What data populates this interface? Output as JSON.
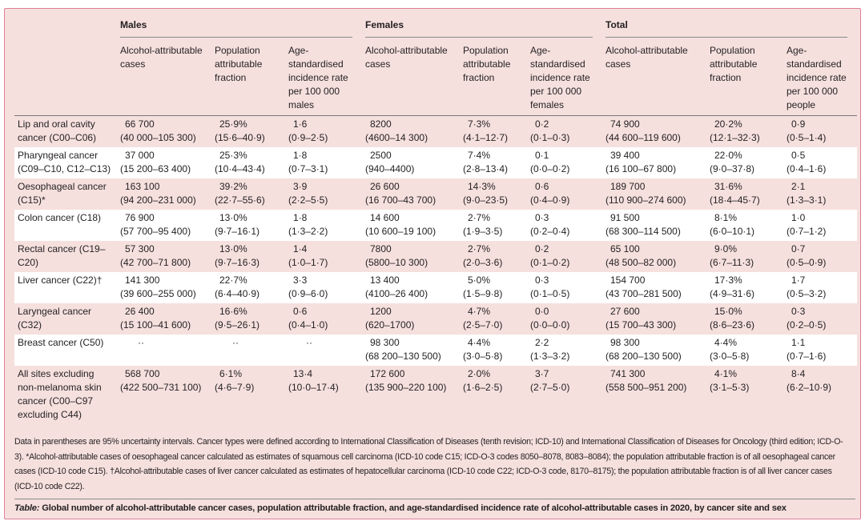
{
  "groups": [
    "Males",
    "Females",
    "Total"
  ],
  "subheaders": [
    "Alcohol-attributable cases",
    "Population attributable fraction",
    "Age-standardised incidence rate per 100 000 males",
    "Alcohol-attributable cases",
    "Population attributable fraction",
    "Age-standardised incidence rate per 100 000 females",
    "Alcohol-attributable cases",
    "Population attributable fraction",
    "Age-standardised incidence rate per 100 000 people"
  ],
  "rows": [
    {
      "label": "Lip and oral cavity cancer (C00–C06)",
      "cells": [
        [
          "66 700",
          "(40 000–105 300)"
        ],
        [
          "25·9%",
          "(15·6–40·9)"
        ],
        [
          "1·6",
          "(0·9–2·5)"
        ],
        [
          "8200",
          "(4600–14 300)"
        ],
        [
          "7·3%",
          "(4·1–12·7)"
        ],
        [
          "0·2",
          "(0·1–0·3)"
        ],
        [
          "74 900",
          "(44 600–119 600)"
        ],
        [
          "20·2%",
          "(12·1–32·3)"
        ],
        [
          "0·9",
          "(0·5–1·4)"
        ]
      ]
    },
    {
      "label": "Pharyngeal cancer (C09–C10, C12–C13)",
      "cells": [
        [
          "37 000",
          "(15 200–63 400)"
        ],
        [
          "25·3%",
          "(10·4–43·4)"
        ],
        [
          "1·8",
          "(0·7–3·1)"
        ],
        [
          "2500",
          "(940–4400)"
        ],
        [
          "7·4%",
          "(2·8–13·4)"
        ],
        [
          "0·1",
          "(0·0–0·2)"
        ],
        [
          "39 400",
          "(16 100–67 800)"
        ],
        [
          "22·0%",
          "(9·0–37·8)"
        ],
        [
          "0·5",
          "(0·4–1·6)"
        ]
      ]
    },
    {
      "label": "Oesophageal cancer (C15)*",
      "cells": [
        [
          "163 100",
          "(94 200–231 000)"
        ],
        [
          "39·2%",
          "(22·7–55·6)"
        ],
        [
          "3·9",
          "(2·2–5·5)"
        ],
        [
          "26 600",
          "(16 700–43 700)"
        ],
        [
          "14·3%",
          "(9·0–23·5)"
        ],
        [
          "0·6",
          "(0·4–0·9)"
        ],
        [
          "189 700",
          "(110 900–274 600)"
        ],
        [
          "31·6%",
          "(18·4–45·7)"
        ],
        [
          "2·1",
          "(1·3–3·1)"
        ]
      ]
    },
    {
      "label": "Colon cancer (C18)",
      "cells": [
        [
          "76 900",
          "(57 700–95 400)"
        ],
        [
          "13·0%",
          "(9·7–16·1)"
        ],
        [
          "1·8",
          "(1·3–2·2)"
        ],
        [
          "14 600",
          "(10 600–19 100)"
        ],
        [
          "2·7%",
          "(1·9–3·5)"
        ],
        [
          "0·3",
          "(0·2–0·4)"
        ],
        [
          "91 500",
          "(68 300–114 500)"
        ],
        [
          "8·1%",
          "(6·0–10·1)"
        ],
        [
          "1·0",
          "(0·7–1·2)"
        ]
      ]
    },
    {
      "label": "Rectal cancer (C19–C20)",
      "cells": [
        [
          "57 300",
          "(42 700–71 800)"
        ],
        [
          "13·0%",
          "(9·7–16·3)"
        ],
        [
          "1·4",
          "(1·0–1·7)"
        ],
        [
          "7800",
          "(5800–10 300)"
        ],
        [
          "2·7%",
          "(2·0–3·6)"
        ],
        [
          "0·2",
          "(0·1–0·2)"
        ],
        [
          "65 100",
          "(48 500–82 000)"
        ],
        [
          "9·0%",
          "(6·7–11·3)"
        ],
        [
          "0·7",
          "(0·5–0·9)"
        ]
      ]
    },
    {
      "label": "Liver cancer (C22)†",
      "cells": [
        [
          "141 300",
          "(39 600–255 000)"
        ],
        [
          "22·7%",
          "(6·4–40·9)"
        ],
        [
          "3·3",
          "(0·9–6·0)"
        ],
        [
          "13 400",
          "(4100–26 400)"
        ],
        [
          "5·0%",
          "(1·5–9·8)"
        ],
        [
          "0·3",
          "(0·1–0·5)"
        ],
        [
          "154 700",
          "(43 700–281 500)"
        ],
        [
          "17·3%",
          "(4·9–31·6)"
        ],
        [
          "1·7",
          "(0·5–3·2)"
        ]
      ]
    },
    {
      "label": "Laryngeal cancer (C32)",
      "cells": [
        [
          "26 400",
          "(15 100–41 600)"
        ],
        [
          "16·6%",
          "(9·5–26·1)"
        ],
        [
          "0·6",
          "(0·4–1·0)"
        ],
        [
          "1200",
          "(620–1700)"
        ],
        [
          "4·7%",
          "(2·5–7·0)"
        ],
        [
          "0·0",
          "(0·0–0·0)"
        ],
        [
          "27 600",
          "(15 700–43 300)"
        ],
        [
          "15·0%",
          "(8·6–23·6)"
        ],
        [
          "0·3",
          "(0·2–0·5)"
        ]
      ]
    },
    {
      "label": "Breast cancer (C50)",
      "cells": [
        [
          "··",
          ""
        ],
        [
          "··",
          ""
        ],
        [
          "··",
          ""
        ],
        [
          "98 300",
          "(68 200–130 500)"
        ],
        [
          "4·4%",
          "(3·0–5·8)"
        ],
        [
          "2·2",
          "(1·3–3·2)"
        ],
        [
          "98 300",
          "(68 200–130 500)"
        ],
        [
          "4·4%",
          "(3·0–5·8)"
        ],
        [
          "1·1",
          "(0·7–1·6)"
        ]
      ]
    },
    {
      "label": "All sites excluding non-melanoma skin cancer (C00–C97 excluding C44)",
      "cells": [
        [
          "568 700",
          "(422 500–731 100)"
        ],
        [
          "6·1%",
          "(4·6–7·9)"
        ],
        [
          "13·4",
          "(10·0–17·4)"
        ],
        [
          "172 600",
          "(135 900–220 100)"
        ],
        [
          "2·0%",
          "(1·6–2·5)"
        ],
        [
          "3·7",
          "(2·7–5·0)"
        ],
        [
          "741 300",
          "(558 500–951 200)"
        ],
        [
          "4·1%",
          "(3·1–5·3)"
        ],
        [
          "8·4",
          "(6·2–10·9)"
        ]
      ]
    }
  ],
  "footnote": "Data in parentheses are 95% uncertainty intervals. Cancer types were defined according to International Classification of Diseases (tenth revision; ICD-10) and International Classification of Diseases for Oncology (third edition; ICD-O-3). *Alcohol-attributable cases of oesophageal cancer calculated as estimates of squamous cell carcinoma (ICD-10 code C15; ICD-O-3 codes 8050–8078, 8083–8084); the population attributable fraction is of all oesophageal cancer cases (ICD-10 code C15). †Alcohol-attributable cases of liver cancer calculated as estimates of hepatocellular carcinoma (ICD-10 code C22; ICD-O-3 code, 8170–8175); the population attributable fraction is of all liver cancer cases (ICD-10 code C22).",
  "caption": {
    "label": "Table:",
    "text": " Global number of alcohol-attributable cancer cases, population attributable fraction, and age-standardised incidence rate of alcohol-attributable cases in 2020, by cancer site and sex"
  },
  "colors": {
    "background": "#f5e0de",
    "border": "#e07f98",
    "alt_row": "#ffffff"
  }
}
